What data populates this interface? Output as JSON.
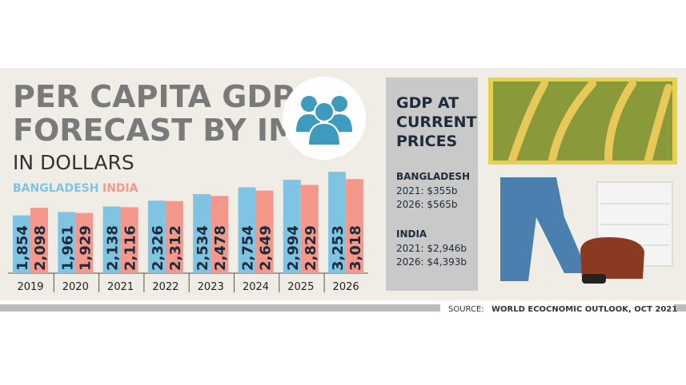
{
  "chart_data": {
    "type": "bar",
    "title_lines": [
      "PER CAPITA GDP",
      "FORECAST BY IMF"
    ],
    "subtitle": "IN DOLLARS",
    "categories": [
      "2019",
      "2020",
      "2021",
      "2022",
      "2023",
      "2024",
      "2025",
      "2026"
    ],
    "series": [
      {
        "name": "BANGLADESH",
        "color": "#7fc4e3",
        "values": [
          1854,
          1961,
          2138,
          2326,
          2534,
          2754,
          2994,
          3253
        ],
        "value_labels": [
          "1,854",
          "1,961",
          "2,138",
          "2,326",
          "2,534",
          "2,754",
          "2,994",
          "3,253"
        ]
      },
      {
        "name": "INDIA",
        "color": "#f4988b",
        "values": [
          2098,
          1929,
          2116,
          2312,
          2478,
          2649,
          2829,
          3018
        ],
        "value_labels": [
          "2,098",
          "1,929",
          "2,116",
          "2,312",
          "2,478",
          "2,649",
          "2,829",
          "3,018"
        ]
      }
    ]
  },
  "sidebar": {
    "heading_lines": [
      "GDP AT",
      "CURRENT",
      "PRICES"
    ],
    "sections": [
      {
        "name": "BANGLADESH",
        "lines": [
          "2021: $355b",
          "2026: $565b"
        ]
      },
      {
        "name": "INDIA",
        "lines": [
          "2021: $2,946b",
          "2026: $4,393b"
        ]
      }
    ]
  },
  "source": {
    "label": "SOURCE:",
    "text": "WORLD ECOCNOMIC OUTLOOK, OCT 2021"
  }
}
